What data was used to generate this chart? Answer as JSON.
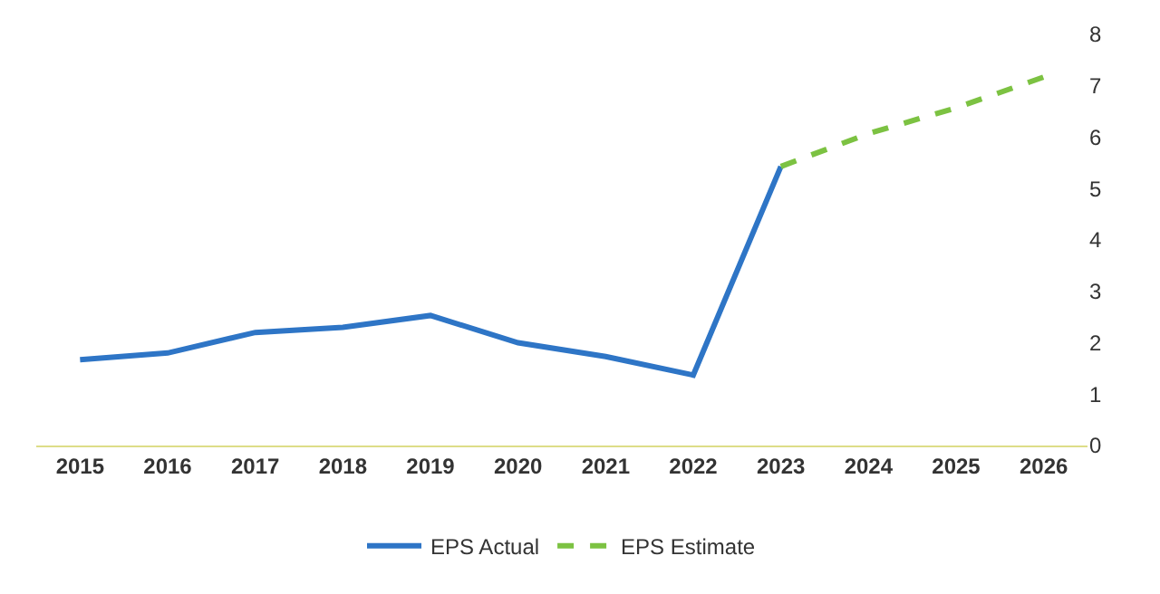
{
  "chart_data": {
    "type": "line",
    "categories": [
      "2015",
      "2016",
      "2017",
      "2018",
      "2019",
      "2020",
      "2021",
      "2022",
      "2023",
      "2024",
      "2025",
      "2026"
    ],
    "series": [
      {
        "name": "EPS Actual",
        "color": "#2e75c6",
        "line_style": "solid",
        "values": [
          1.67,
          1.8,
          2.2,
          2.3,
          2.53,
          2.0,
          1.73,
          1.37,
          5.43,
          null,
          null,
          null
        ]
      },
      {
        "name": "EPS Estimate",
        "color": "#7cc242",
        "line_style": "dashed",
        "values": [
          null,
          null,
          null,
          null,
          null,
          null,
          null,
          null,
          5.43,
          6.07,
          6.57,
          7.17
        ]
      }
    ],
    "ylim": [
      0,
      8
    ],
    "yticks": [
      0,
      1,
      2,
      3,
      4,
      5,
      6,
      7,
      8
    ],
    "legend": "bottom",
    "marker": "none"
  }
}
